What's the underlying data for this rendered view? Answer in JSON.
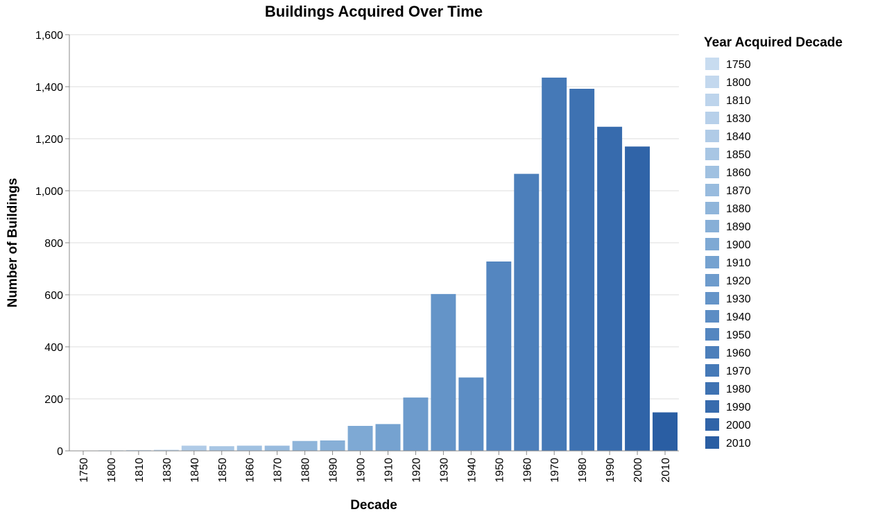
{
  "chart_data": {
    "type": "bar",
    "title": "Buildings Acquired Over Time",
    "xlabel": "Decade",
    "ylabel": "Number of Buildings",
    "ylim": [
      0,
      1600
    ],
    "yticks": [
      "0",
      "200",
      "400",
      "600",
      "800",
      "1,000",
      "1,200",
      "1,400",
      "1,600"
    ],
    "grid": true,
    "categories": [
      "1750",
      "1800",
      "1810",
      "1830",
      "1840",
      "1850",
      "1860",
      "1870",
      "1880",
      "1890",
      "1900",
      "1910",
      "1920",
      "1930",
      "1940",
      "1950",
      "1960",
      "1970",
      "1980",
      "1990",
      "2000",
      "2010"
    ],
    "values": [
      1,
      2,
      3,
      4,
      20,
      18,
      20,
      20,
      38,
      40,
      96,
      103,
      205,
      603,
      282,
      728,
      1065,
      1435,
      1392,
      1246,
      1170,
      148
    ],
    "colors": [
      "#c8dcf0",
      "#c3d8ee",
      "#bdd4ec",
      "#b7d0ea",
      "#b0cbe7",
      "#a8c6e4",
      "#a0c1e1",
      "#98bbde",
      "#8fb5da",
      "#87afd7",
      "#7ea9d4",
      "#75a2d0",
      "#6d9bcc",
      "#6494c8",
      "#5c8dc4",
      "#5486c0",
      "#4c7fbb",
      "#4579b7",
      "#3e72b2",
      "#376bad",
      "#3064a8",
      "#2a5ea3"
    ],
    "legend": {
      "title": "Year Acquired Decade",
      "position": "right",
      "entries": [
        "1750",
        "1800",
        "1810",
        "1830",
        "1840",
        "1850",
        "1860",
        "1870",
        "1880",
        "1890",
        "1900",
        "1910",
        "1920",
        "1930",
        "1940",
        "1950",
        "1960",
        "1970",
        "1980",
        "1990",
        "2000",
        "2010"
      ]
    }
  }
}
